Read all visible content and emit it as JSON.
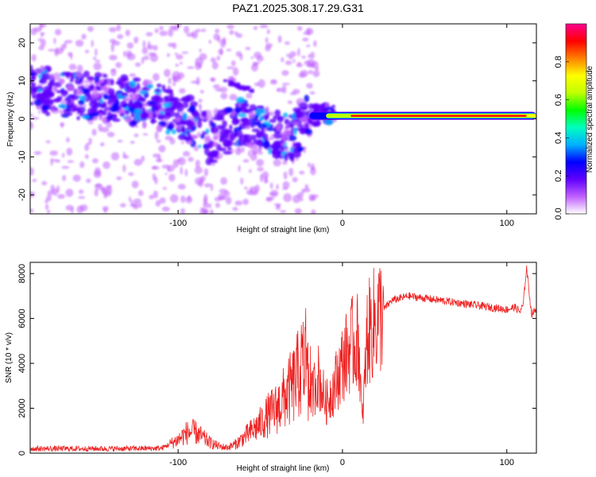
{
  "title": "PAZ1.2025.308.17.29.G31",
  "chart_data": [
    {
      "type": "heatmap",
      "name": "spectrogram",
      "xlabel": "Height of straight line (km)",
      "ylabel": "Frequency (Hz)",
      "xlim": [
        -190,
        118
      ],
      "ylim": [
        -25,
        25
      ],
      "xticks": [
        -100,
        0,
        100
      ],
      "yticks": [
        -20,
        -10,
        0,
        10,
        20
      ],
      "colorbar": {
        "label": "Normalized spectral amplitude",
        "range": [
          0,
          1
        ],
        "ticks": [
          0.0,
          0.2,
          0.4,
          0.6,
          0.8
        ],
        "colors": [
          "#ffffff",
          "#c060ff",
          "#6000ff",
          "#0000ff",
          "#00b0ff",
          "#00ffc0",
          "#00ff00",
          "#c0ff00",
          "#ffff00",
          "#ff8000",
          "#ff0000",
          "#ff0090"
        ]
      },
      "frequency_trend": [
        {
          "x": -190,
          "f": 8
        },
        {
          "x": -160,
          "f": 6
        },
        {
          "x": -130,
          "f": 5
        },
        {
          "x": -110,
          "f": 3
        },
        {
          "x": -90,
          "f": -1
        },
        {
          "x": -80,
          "f": -6
        },
        {
          "x": -60,
          "f": 0
        },
        {
          "x": -40,
          "f": -4
        },
        {
          "x": -30,
          "f": -5
        },
        {
          "x": -20,
          "f": 1
        },
        {
          "x": 0,
          "f": 1.5
        },
        {
          "x": 20,
          "f": 0.8
        },
        {
          "x": 60,
          "f": 0.8
        },
        {
          "x": 100,
          "f": 0.9
        },
        {
          "x": 118,
          "f": 1
        }
      ],
      "peak_band": {
        "x_start": 5,
        "x_end": 112,
        "freq": 0.8,
        "amplitude": 1.0
      }
    },
    {
      "type": "line",
      "name": "snr",
      "xlabel": "Height of straight line (km)",
      "ylabel": "SNR (10 * v/v)",
      "xlim": [
        -190,
        118
      ],
      "ylim": [
        0,
        8500
      ],
      "xticks": [
        -100,
        0,
        100
      ],
      "yticks": [
        0,
        2000,
        4000,
        6000,
        8000
      ],
      "color": "#ee2222",
      "series": [
        {
          "name": "SNR",
          "x": [
            -190,
            -170,
            -150,
            -130,
            -110,
            -100,
            -95,
            -90,
            -85,
            -80,
            -75,
            -70,
            -65,
            -60,
            -55,
            -50,
            -45,
            -40,
            -35,
            -30,
            -25,
            -22,
            -20,
            -15,
            -10,
            -5,
            0,
            5,
            10,
            12,
            15,
            20,
            25,
            30,
            40,
            50,
            60,
            70,
            80,
            90,
            100,
            105,
            108,
            110,
            112,
            115,
            118
          ],
          "y": [
            200,
            200,
            200,
            200,
            220,
            600,
            900,
            950,
            700,
            450,
            300,
            250,
            400,
            700,
            1000,
            1300,
            1700,
            2000,
            2500,
            3000,
            3800,
            4500,
            2200,
            3500,
            2200,
            3000,
            4000,
            4800,
            5000,
            1200,
            5200,
            5900,
            6400,
            6800,
            7000,
            6900,
            6800,
            6700,
            6600,
            6500,
            6400,
            6500,
            6300,
            6600,
            8300,
            6200,
            6400
          ]
        }
      ]
    }
  ]
}
